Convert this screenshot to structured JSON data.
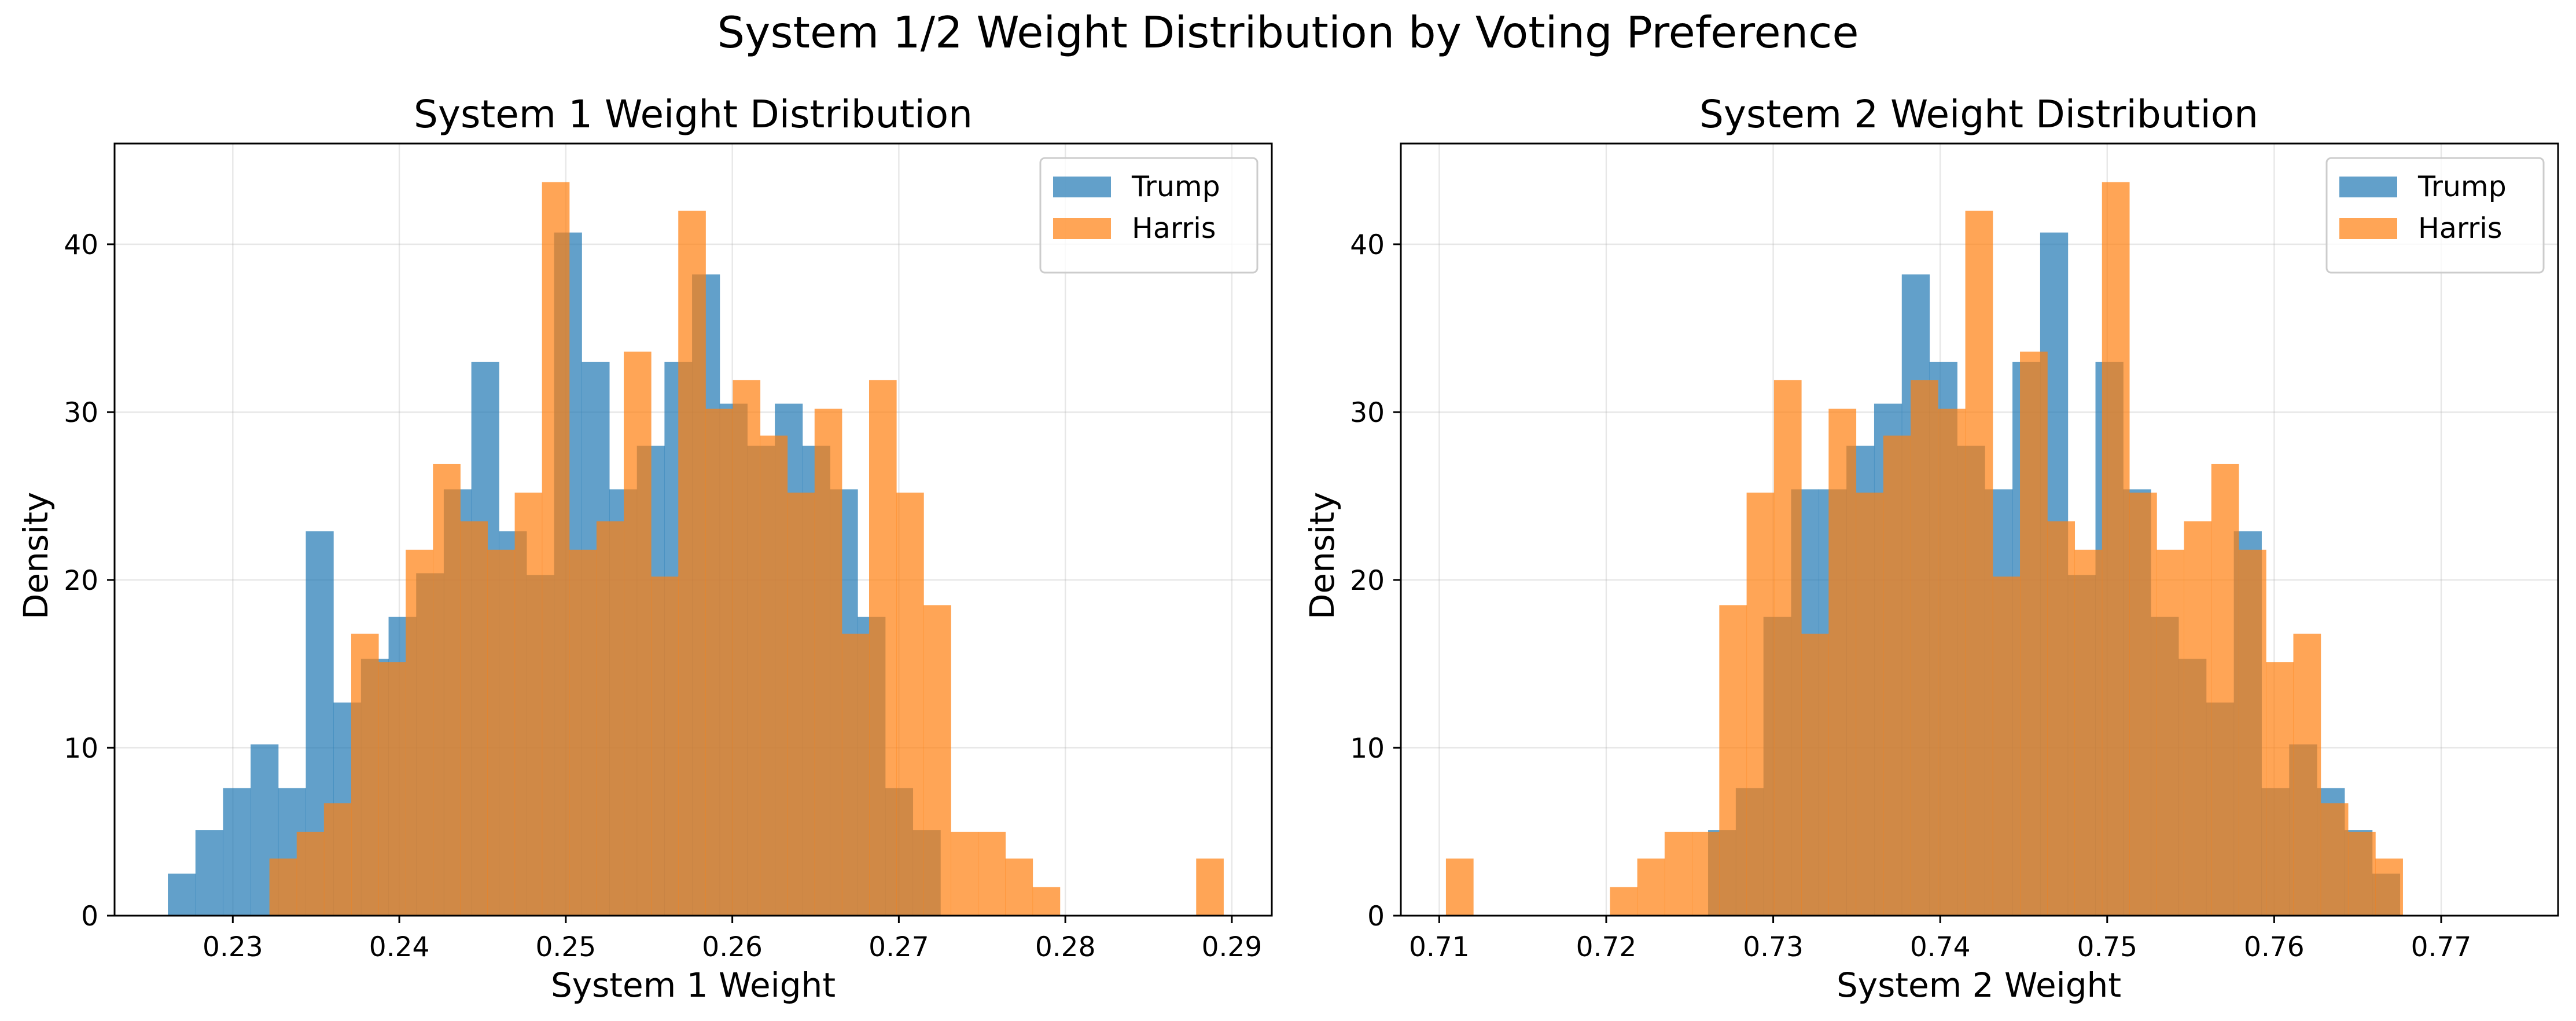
{
  "suptitle": "System 1/2 Weight Distribution by Voting Preference",
  "colors": {
    "trump": "#1f77b4",
    "harris": "#ff7f0e"
  },
  "chart_data": [
    {
      "type": "histogram",
      "title": "System 1 Weight Distribution",
      "xlabel": "System 1 Weight",
      "ylabel": "Density",
      "xlim": [
        0.2229,
        0.2924
      ],
      "ylim": [
        0,
        46
      ],
      "xticks": [
        0.23,
        0.24,
        0.25,
        0.26,
        0.27,
        0.28,
        0.29
      ],
      "xtick_labels": [
        "0.23",
        "0.24",
        "0.25",
        "0.26",
        "0.27",
        "0.28",
        "0.29"
      ],
      "yticks": [
        0,
        10,
        20,
        30,
        40
      ],
      "ytick_labels": [
        "0",
        "10",
        "20",
        "30",
        "40"
      ],
      "grid": true,
      "legend": "top-right",
      "series": [
        {
          "name": "Trump",
          "bin_start": 0.2261,
          "bin_width": 0.001657,
          "values": [
            2.5,
            5.1,
            7.6,
            10.2,
            7.6,
            22.9,
            12.7,
            15.3,
            17.8,
            20.4,
            25.4,
            33.0,
            22.9,
            20.3,
            40.7,
            33.0,
            25.4,
            28.0,
            33.0,
            38.2,
            30.5,
            28.0,
            30.5,
            28.0,
            25.4,
            17.8,
            7.6,
            5.1
          ]
        },
        {
          "name": "Harris",
          "bin_start": 0.2322,
          "bin_width": 0.001637,
          "values": [
            3.4,
            5.0,
            6.7,
            16.8,
            15.1,
            21.8,
            26.9,
            23.5,
            21.8,
            25.2,
            43.7,
            21.8,
            23.5,
            33.6,
            20.2,
            42.0,
            30.2,
            31.9,
            28.6,
            25.2,
            30.2,
            16.8,
            31.9,
            25.2,
            18.5,
            5.0,
            5.0,
            3.4,
            1.7,
            0,
            0,
            0,
            0,
            0,
            3.4
          ]
        }
      ]
    },
    {
      "type": "histogram",
      "title": "System 2 Weight Distribution",
      "xlabel": "System 2 Weight",
      "ylabel": "Density",
      "xlim": [
        0.7077,
        0.777
      ],
      "ylim": [
        0,
        46
      ],
      "xticks": [
        0.71,
        0.72,
        0.73,
        0.74,
        0.75,
        0.76,
        0.77
      ],
      "xtick_labels": [
        "0.71",
        "0.72",
        "0.73",
        "0.74",
        "0.75",
        "0.76",
        "0.77"
      ],
      "yticks": [
        0,
        10,
        20,
        30,
        40
      ],
      "ytick_labels": [
        "0",
        "10",
        "20",
        "30",
        "40"
      ],
      "grid": true,
      "legend": "top-right",
      "series": [
        {
          "name": "Trump",
          "bin_start": 0.7261,
          "bin_width": 0.001657,
          "values": [
            5.1,
            7.6,
            17.8,
            25.4,
            25.4,
            28.0,
            30.5,
            38.2,
            33.0,
            28.0,
            25.4,
            33.0,
            40.7,
            20.3,
            33.0,
            25.4,
            17.8,
            15.3,
            12.7,
            22.9,
            7.6,
            10.2,
            7.6,
            5.1,
            2.5
          ]
        },
        {
          "name": "Harris",
          "bin_start": 0.7104,
          "bin_width": 0.001637,
          "values": [
            3.4,
            0,
            0,
            0,
            0,
            0,
            1.7,
            3.4,
            5.0,
            5.0,
            18.5,
            25.2,
            31.9,
            16.8,
            30.2,
            25.2,
            28.6,
            31.9,
            30.2,
            42.0,
            20.2,
            33.6,
            23.5,
            21.8,
            43.7,
            25.2,
            21.8,
            23.5,
            26.9,
            21.8,
            15.1,
            16.8,
            6.7,
            5.0,
            3.4
          ]
        }
      ]
    }
  ]
}
